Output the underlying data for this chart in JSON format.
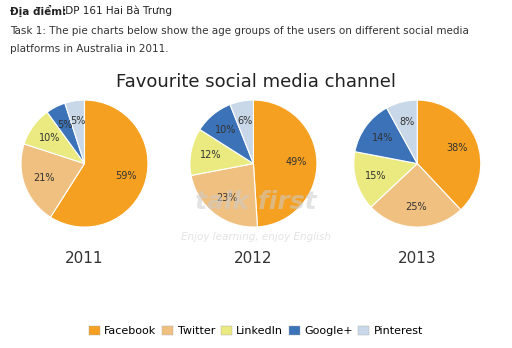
{
  "title": "Favourite social media channel",
  "header_bold": "Địa điểm:",
  "header_rest": " IDP 161 Hai Bà Trưng",
  "task_line1": "Task 1: The pie charts below show the age groups of the users on different social media",
  "task_line2": "platforms in Australia in 2011.",
  "years": [
    "2011",
    "2012",
    "2013"
  ],
  "categories": [
    "Facebook",
    "Twitter",
    "LinkedIn",
    "Google+",
    "Pinterest"
  ],
  "colors": [
    "#F5A020",
    "#F0C080",
    "#EAEA80",
    "#3B72B8",
    "#C8D8E8"
  ],
  "data": {
    "2011": [
      59,
      21,
      10,
      5,
      5
    ],
    "2012": [
      49,
      23,
      12,
      10,
      6
    ],
    "2013": [
      38,
      25,
      15,
      14,
      8
    ]
  },
  "bg_color": "#FFFFFF",
  "title_fontsize": 13,
  "label_fontsize": 7,
  "year_fontsize": 11,
  "legend_fontsize": 8,
  "header_fontsize": 7.5,
  "task_fontsize": 7.5
}
